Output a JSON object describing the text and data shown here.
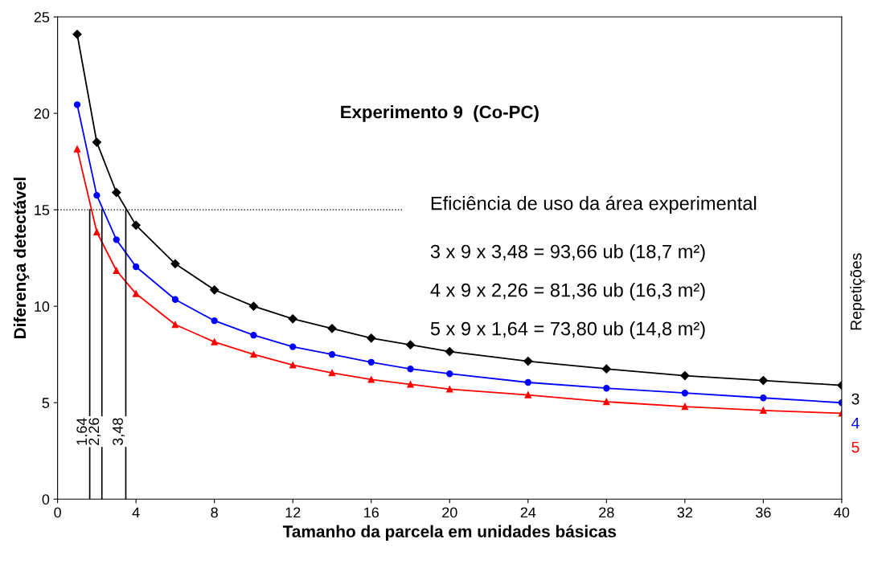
{
  "chart_data": {
    "type": "line",
    "title": "Experimento 9  (Co-PC)",
    "xlabel": "Tamanho da parcela em unidades básicas",
    "ylabel": "Diferença detectável",
    "legend_title": "Repetições",
    "x": [
      1,
      2,
      3,
      4,
      6,
      8,
      10,
      12,
      14,
      16,
      18,
      20,
      24,
      28,
      32,
      36,
      40
    ],
    "series": [
      {
        "name": "3",
        "color": "#000000",
        "marker": "diamond",
        "values": [
          24.1,
          18.5,
          15.9,
          14.2,
          12.2,
          10.85,
          10.0,
          9.35,
          8.85,
          8.35,
          8.0,
          7.65,
          7.15,
          6.75,
          6.4,
          6.15,
          5.9
        ]
      },
      {
        "name": "4",
        "color": "#0000ff",
        "marker": "circle",
        "values": [
          20.45,
          15.75,
          13.45,
          12.05,
          10.35,
          9.25,
          8.5,
          7.9,
          7.5,
          7.1,
          6.75,
          6.5,
          6.05,
          5.75,
          5.5,
          5.25,
          5.0
        ]
      },
      {
        "name": "5",
        "color": "#ff0000",
        "marker": "triangle",
        "values": [
          18.15,
          13.85,
          11.85,
          10.65,
          9.05,
          8.15,
          7.5,
          6.95,
          6.55,
          6.2,
          5.95,
          5.7,
          5.4,
          5.05,
          4.8,
          4.6,
          4.45
        ]
      }
    ],
    "xlim": [
      0,
      40
    ],
    "xticks": [
      0,
      4,
      8,
      12,
      16,
      20,
      24,
      28,
      32,
      36,
      40
    ],
    "ylim": [
      0,
      25
    ],
    "yticks": [
      0,
      5,
      10,
      15,
      20,
      25
    ],
    "ref_lines": [
      {
        "axis": "y",
        "value": 15,
        "color": "#000000",
        "line_style": "dotted"
      },
      {
        "axis": "x",
        "value": 1.64,
        "label": "1,64",
        "color": "#000000",
        "line_style": "solid"
      },
      {
        "axis": "x",
        "value": 2.26,
        "label": "2,26",
        "color": "#000000",
        "line_style": "solid"
      },
      {
        "axis": "x",
        "value": 3.48,
        "label": "3,48",
        "color": "#000000",
        "line_style": "solid"
      }
    ],
    "annotations": [
      "Eficiência de uso da área experimental",
      "3 x 9 x 3,48 = 93,66 ub (18,7 m²)",
      "4 x 9 x 2,26 = 81,36 ub (16,3 m²)",
      "5 x 9 x 1,64 = 73,80 ub (14,8 m²)"
    ],
    "grid": false,
    "legend": false
  }
}
